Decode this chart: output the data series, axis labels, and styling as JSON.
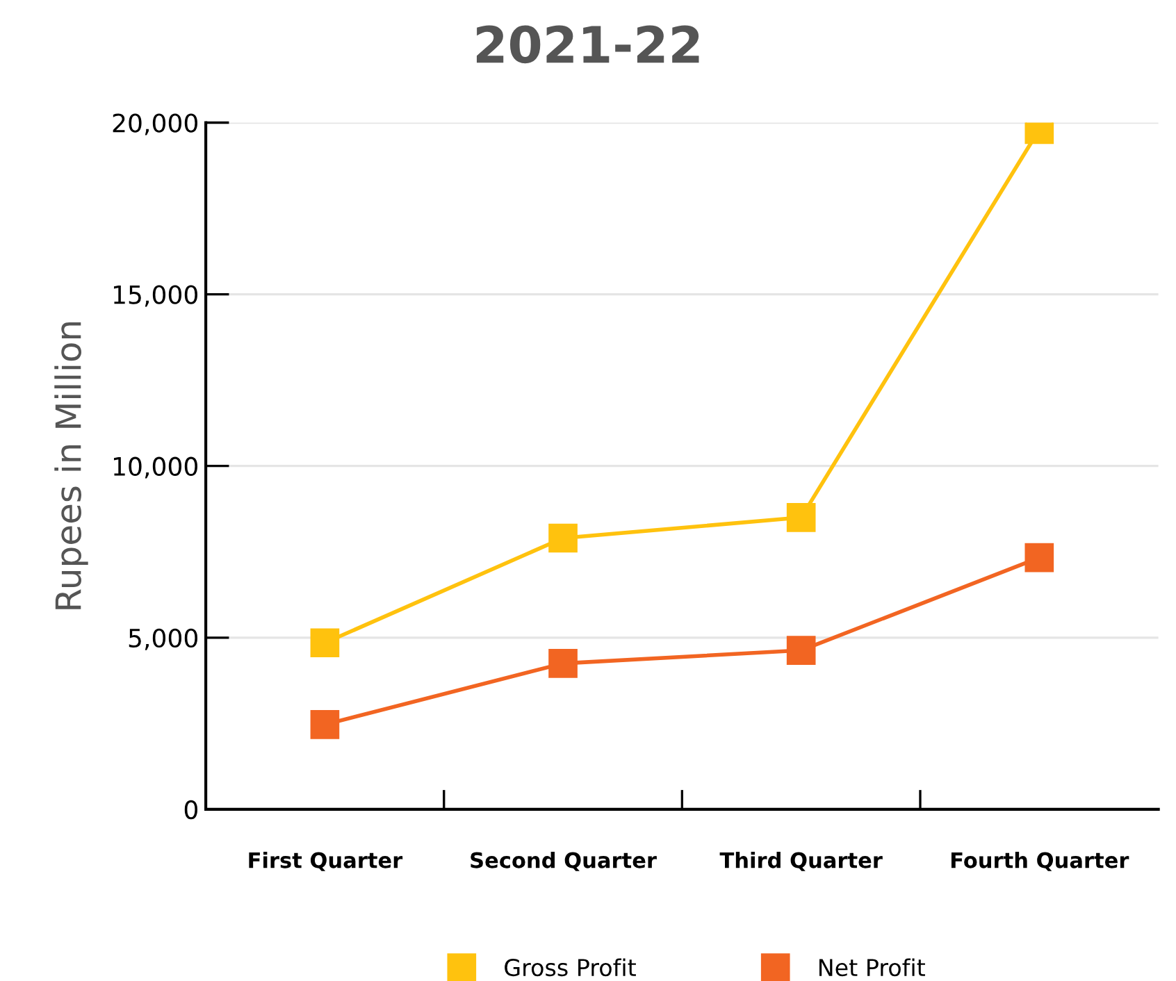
{
  "chart_data": {
    "type": "line",
    "title": "2021-22",
    "ylabel": "Rupees in Million",
    "categories": [
      "First Quarter",
      "Second Quarter",
      "Third Quarter",
      "Fourth Quarter"
    ],
    "series": [
      {
        "name": "Gross Profit",
        "color": "#ffc20e",
        "values": [
          4850,
          7900,
          8500,
          19800
        ]
      },
      {
        "name": "Net Profit",
        "color": "#f26522",
        "values": [
          2470,
          4250,
          4630,
          7330
        ]
      }
    ],
    "ylim": [
      0,
      20000
    ],
    "yticks": [
      {
        "value": 0,
        "label": "0"
      },
      {
        "value": 5000,
        "label": "5,000"
      },
      {
        "value": 10000,
        "label": "10,000"
      },
      {
        "value": 15000,
        "label": "15,000"
      },
      {
        "value": 20000,
        "label": "20,000"
      }
    ],
    "grid": "y",
    "legend": "bottom",
    "marker": "square",
    "line_style": "solid"
  }
}
